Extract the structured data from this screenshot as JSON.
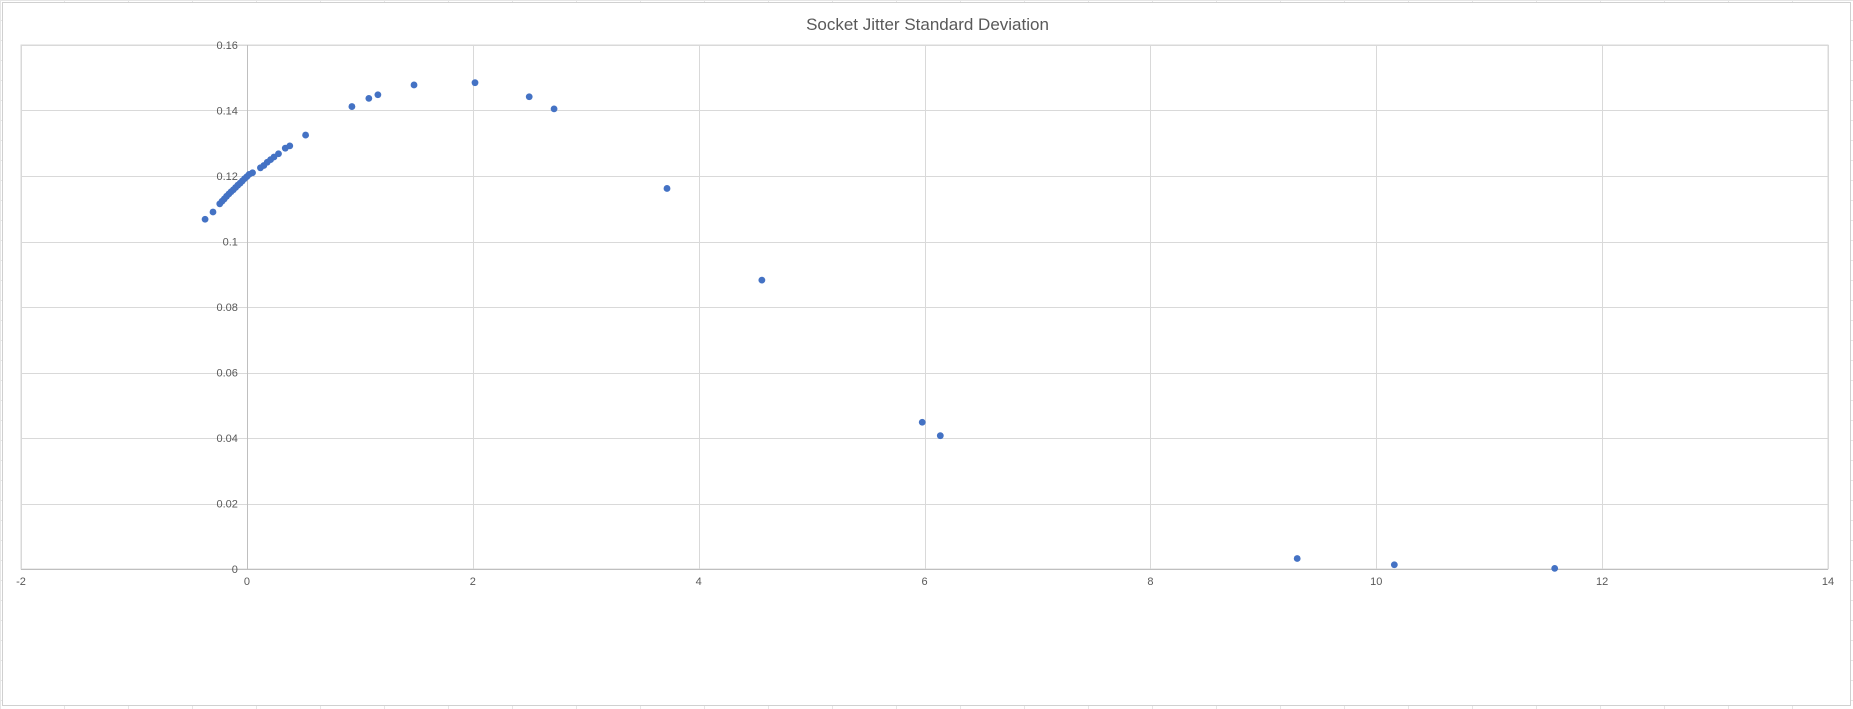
{
  "chart_data": {
    "type": "scatter",
    "title": "Socket Jitter Standard Deviation",
    "xlabel": "",
    "ylabel": "",
    "xlim": [
      -2,
      14
    ],
    "ylim": [
      0,
      0.16
    ],
    "xticks": [
      -2,
      0,
      2,
      4,
      6,
      8,
      10,
      12,
      14
    ],
    "xtick_labels": [
      "-2",
      "0",
      "2",
      "4",
      "6",
      "8",
      "10",
      "12",
      "14"
    ],
    "yticks": [
      0,
      0.02,
      0.04,
      0.06,
      0.08,
      0.1,
      0.12,
      0.14,
      0.16
    ],
    "ytick_labels": [
      "0",
      "0.02",
      "0.04",
      "0.06",
      "0.08",
      "0.1",
      "0.12",
      "0.14",
      "0.16"
    ],
    "grid": true,
    "legend": "none",
    "series": [
      {
        "color": "#4472c4",
        "points": [
          [
            -0.37,
            0.1068
          ],
          [
            -0.3,
            0.109
          ],
          [
            -0.24,
            0.1115
          ],
          [
            -0.22,
            0.1123
          ],
          [
            -0.2,
            0.113
          ],
          [
            -0.18,
            0.1138
          ],
          [
            -0.16,
            0.1145
          ],
          [
            -0.14,
            0.1152
          ],
          [
            -0.12,
            0.1158
          ],
          [
            -0.1,
            0.1165
          ],
          [
            -0.08,
            0.1172
          ],
          [
            -0.06,
            0.1178
          ],
          [
            -0.04,
            0.1185
          ],
          [
            -0.02,
            0.1192
          ],
          [
            0.0,
            0.1198
          ],
          [
            0.02,
            0.1205
          ],
          [
            0.05,
            0.121
          ],
          [
            0.12,
            0.1225
          ],
          [
            0.15,
            0.1232
          ],
          [
            0.18,
            0.1242
          ],
          [
            0.21,
            0.125
          ],
          [
            0.24,
            0.1258
          ],
          [
            0.28,
            0.1268
          ],
          [
            0.34,
            0.1285
          ],
          [
            0.38,
            0.1292
          ],
          [
            0.52,
            0.1325
          ],
          [
            0.93,
            0.1412
          ],
          [
            1.08,
            0.1437
          ],
          [
            1.16,
            0.1448
          ],
          [
            1.48,
            0.1478
          ],
          [
            2.02,
            0.1485
          ],
          [
            2.5,
            0.1442
          ],
          [
            2.72,
            0.1405
          ],
          [
            3.72,
            0.1162
          ],
          [
            4.56,
            0.0882
          ],
          [
            5.98,
            0.0448
          ],
          [
            6.14,
            0.0407
          ],
          [
            9.3,
            0.0032
          ],
          [
            10.16,
            0.0013
          ],
          [
            11.58,
            0.0002
          ]
        ]
      }
    ]
  }
}
